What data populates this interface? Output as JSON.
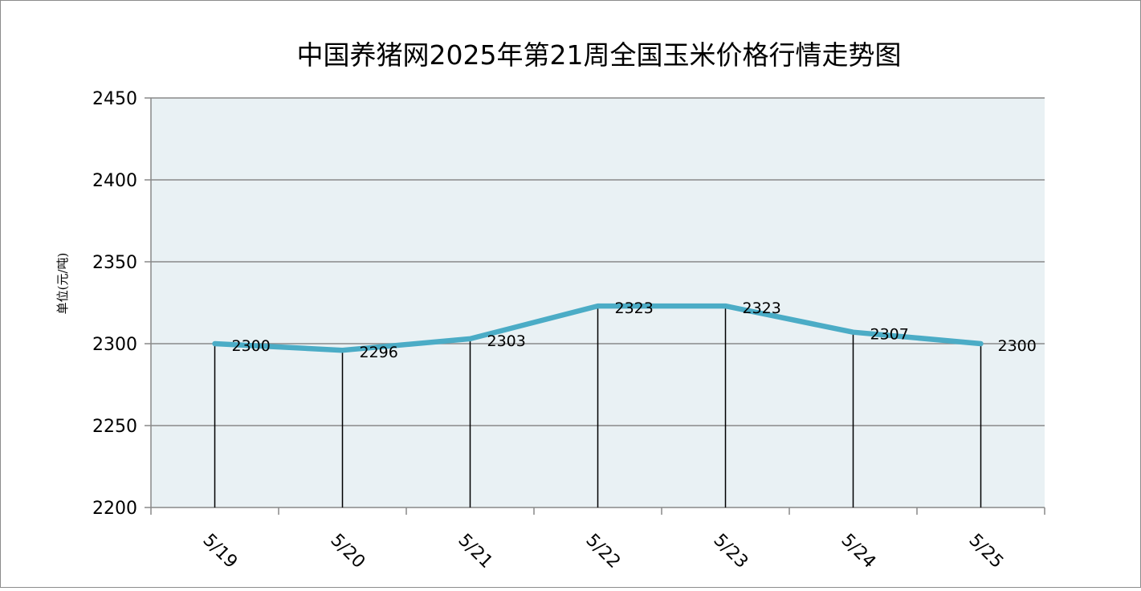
{
  "chart_data": {
    "type": "line",
    "title": "中国养猪网2025年第21周全国玉米价格行情走势图",
    "ylabel": "单位(元/吨)",
    "xlabel": "",
    "categories": [
      "5/19",
      "5/20",
      "5/21",
      "5/22",
      "5/23",
      "5/24",
      "5/25"
    ],
    "series": [
      {
        "values": [
          2300,
          2296,
          2303,
          2323,
          2323,
          2307,
          2300
        ]
      }
    ],
    "ylim": [
      2200,
      2450
    ],
    "yticks": [
      "2200",
      "2250",
      "2300",
      "2350",
      "2400",
      "2450"
    ],
    "data_labels": [
      "2300",
      "2296",
      "2303",
      "2323",
      "2323",
      "2307",
      "2300"
    ],
    "grid": true,
    "drop_lines": true,
    "colors": {
      "line": "#4bacc6",
      "plot_background": "#e9f1f4",
      "grid": "#898989",
      "axis": "#898989",
      "drop_line": "#000000"
    }
  }
}
